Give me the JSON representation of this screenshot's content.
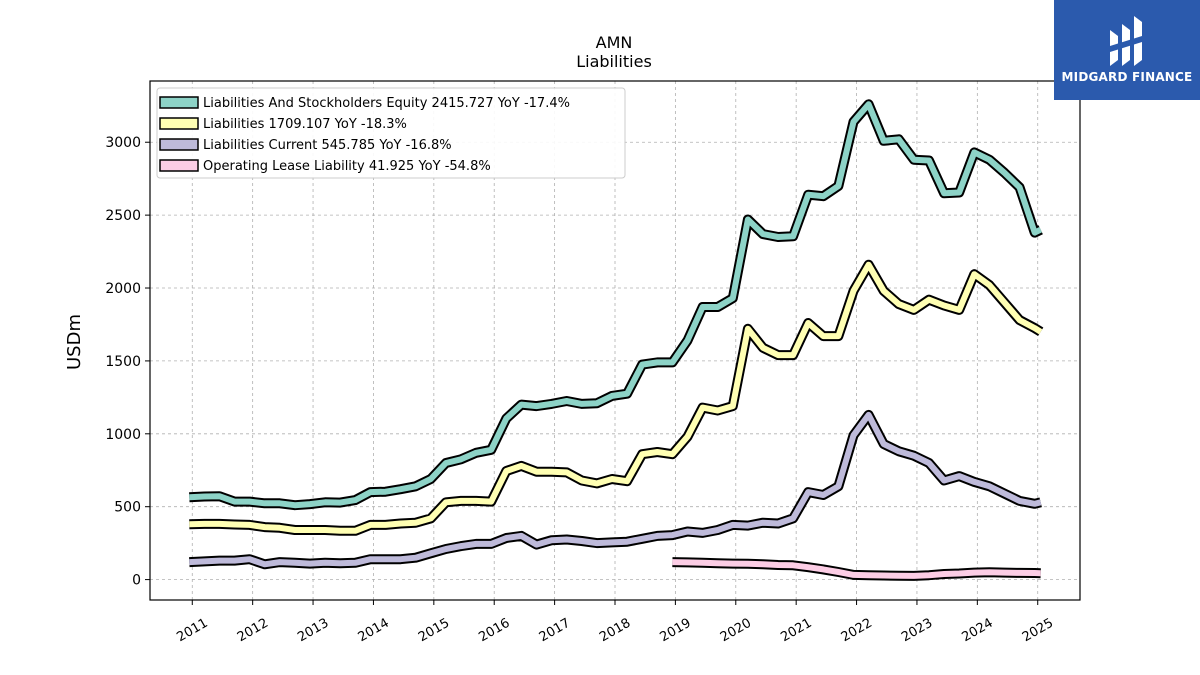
{
  "brand": {
    "name": "MIDGARD FINANCE",
    "bg_color": "#2b5aad"
  },
  "chart_data": {
    "type": "line",
    "title": "AMN",
    "subtitle": "Liabilities",
    "xlabel": "",
    "ylabel": "USDm",
    "xlim": [
      2010.3,
      2025.7
    ],
    "ylim": [
      -140,
      3420
    ],
    "x_ticks": [
      2011,
      2012,
      2013,
      2014,
      2015,
      2016,
      2017,
      2018,
      2019,
      2020,
      2021,
      2022,
      2023,
      2024,
      2025
    ],
    "x_tick_labels": [
      "2011",
      "2012",
      "2013",
      "2014",
      "2015",
      "2016",
      "2017",
      "2018",
      "2019",
      "2020",
      "2021",
      "2022",
      "2023",
      "2024",
      "2025"
    ],
    "y_ticks": [
      0,
      500,
      1000,
      1500,
      2000,
      2500,
      3000
    ],
    "y_tick_labels": [
      "0",
      "500",
      "1000",
      "1500",
      "2000",
      "2500",
      "3000"
    ],
    "grid": true,
    "legend_position": "top-left",
    "series": [
      {
        "name": "Liabilities And Stockholders Equity  2415.727 YoY -17.4%",
        "color": "#8dd3c7",
        "x": [
          2010.95,
          2011.2,
          2011.45,
          2011.7,
          2011.95,
          2012.2,
          2012.45,
          2012.7,
          2012.95,
          2013.2,
          2013.45,
          2013.7,
          2013.95,
          2014.2,
          2014.45,
          2014.7,
          2014.95,
          2015.2,
          2015.45,
          2015.7,
          2015.95,
          2016.2,
          2016.45,
          2016.7,
          2016.95,
          2017.2,
          2017.45,
          2017.7,
          2017.95,
          2018.2,
          2018.45,
          2018.7,
          2018.95,
          2019.2,
          2019.45,
          2019.7,
          2019.95,
          2020.2,
          2020.45,
          2020.7,
          2020.95,
          2021.2,
          2021.45,
          2021.7,
          2021.95,
          2022.2,
          2022.45,
          2022.7,
          2022.95,
          2023.2,
          2023.45,
          2023.7,
          2023.95,
          2024.2,
          2024.45,
          2024.7,
          2024.95,
          2025.05
        ],
        "values": [
          565,
          570,
          572,
          535,
          535,
          523,
          523,
          510,
          518,
          530,
          528,
          545,
          600,
          603,
          620,
          640,
          690,
          800,
          825,
          870,
          890,
          1105,
          1200,
          1190,
          1205,
          1225,
          1205,
          1210,
          1260,
          1275,
          1475,
          1490,
          1490,
          1640,
          1870,
          1870,
          1930,
          2470,
          2370,
          2350,
          2355,
          2640,
          2630,
          2700,
          3140,
          3260,
          3010,
          3020,
          2880,
          2875,
          2650,
          2655,
          2930,
          2880,
          2790,
          2690,
          2380,
          2400
        ]
      },
      {
        "name": "Liabilities  1709.107 YoY -18.3%",
        "color": "#ffffb3",
        "x": [
          2010.95,
          2011.2,
          2011.45,
          2011.7,
          2011.95,
          2012.2,
          2012.45,
          2012.7,
          2012.95,
          2013.2,
          2013.45,
          2013.7,
          2013.95,
          2014.2,
          2014.45,
          2014.7,
          2014.95,
          2015.2,
          2015.45,
          2015.7,
          2015.95,
          2016.2,
          2016.45,
          2016.7,
          2016.95,
          2017.2,
          2017.45,
          2017.7,
          2017.95,
          2018.2,
          2018.45,
          2018.7,
          2018.95,
          2019.2,
          2019.45,
          2019.7,
          2019.95,
          2020.2,
          2020.45,
          2020.7,
          2020.95,
          2021.2,
          2021.45,
          2021.7,
          2021.95,
          2022.2,
          2022.45,
          2022.7,
          2022.95,
          2023.2,
          2023.45,
          2023.7,
          2023.95,
          2024.2,
          2024.45,
          2024.7,
          2024.95,
          2025.05
        ],
        "values": [
          380,
          382,
          382,
          378,
          375,
          360,
          355,
          340,
          340,
          340,
          335,
          335,
          375,
          375,
          385,
          390,
          420,
          530,
          540,
          540,
          535,
          745,
          780,
          740,
          740,
          735,
          680,
          660,
          690,
          675,
          860,
          875,
          860,
          980,
          1180,
          1160,
          1190,
          1720,
          1590,
          1540,
          1540,
          1760,
          1670,
          1670,
          1980,
          2160,
          1980,
          1890,
          1850,
          1920,
          1880,
          1850,
          2095,
          2020,
          1900,
          1780,
          1725,
          1700
        ]
      },
      {
        "name": "Liabilities Current  545.785 YoY -16.8%",
        "color": "#bebada",
        "x": [
          2010.95,
          2011.2,
          2011.45,
          2011.7,
          2011.95,
          2012.2,
          2012.45,
          2012.7,
          2012.95,
          2013.2,
          2013.45,
          2013.7,
          2013.95,
          2014.2,
          2014.45,
          2014.7,
          2014.95,
          2015.2,
          2015.45,
          2015.7,
          2015.95,
          2016.2,
          2016.45,
          2016.7,
          2016.95,
          2017.2,
          2017.45,
          2017.7,
          2017.95,
          2018.2,
          2018.45,
          2018.7,
          2018.95,
          2019.2,
          2019.45,
          2019.7,
          2019.95,
          2020.2,
          2020.45,
          2020.7,
          2020.95,
          2021.2,
          2021.45,
          2021.7,
          2021.95,
          2022.2,
          2022.45,
          2022.7,
          2022.95,
          2023.2,
          2023.45,
          2023.7,
          2023.95,
          2024.2,
          2024.45,
          2024.7,
          2024.95,
          2025.05
        ],
        "values": [
          120,
          125,
          130,
          130,
          140,
          105,
          120,
          115,
          110,
          115,
          112,
          115,
          140,
          140,
          140,
          150,
          180,
          210,
          230,
          245,
          245,
          285,
          300,
          240,
          270,
          275,
          265,
          250,
          255,
          260,
          280,
          300,
          305,
          330,
          320,
          340,
          375,
          370,
          390,
          385,
          420,
          600,
          580,
          640,
          990,
          1130,
          930,
          880,
          850,
          800,
          680,
          710,
          670,
          640,
          590,
          540,
          520,
          530
        ]
      },
      {
        "name": "Operating Lease Liability  41.925 YoY -54.8%",
        "color": "#fccde5",
        "x": [
          2018.95,
          2019.2,
          2019.45,
          2019.7,
          2019.95,
          2020.2,
          2020.45,
          2020.7,
          2020.95,
          2021.2,
          2021.45,
          2021.7,
          2021.95,
          2022.2,
          2022.45,
          2022.7,
          2022.95,
          2023.2,
          2023.45,
          2023.7,
          2023.95,
          2024.2,
          2024.45,
          2024.7,
          2024.95,
          2025.05
        ],
        "values": [
          120,
          118,
          115,
          112,
          110,
          108,
          105,
          100,
          98,
          85,
          70,
          52,
          32,
          30,
          28,
          26,
          25,
          30,
          38,
          42,
          48,
          50,
          48,
          46,
          45,
          44
        ]
      }
    ]
  }
}
